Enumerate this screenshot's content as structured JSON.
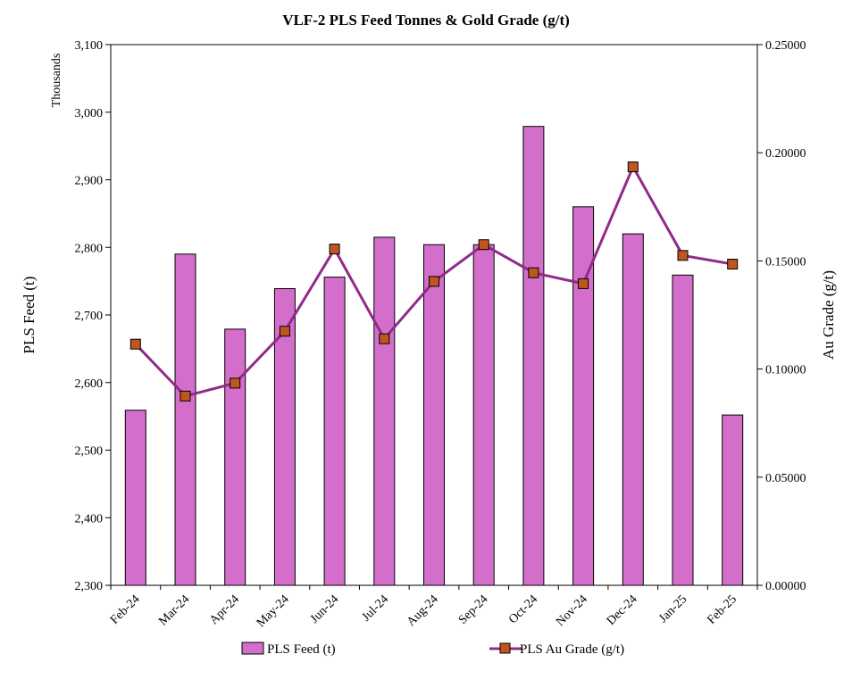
{
  "chart_data": {
    "type": "bar",
    "title": "VLF-2 PLS Feed Tonnes & Gold Grade (g/t)",
    "categories": [
      "Feb-24",
      "Mar-24",
      "Apr-24",
      "May-24",
      "Jun-24",
      "Jul-24",
      "Aug-24",
      "Sep-24",
      "Oct-24",
      "Nov-24",
      "Dec-24",
      "Jan-25",
      "Feb-25"
    ],
    "y_unit_label": "Thousands",
    "ylabel": "PLS Feed (t)",
    "y2label": "Au Grade (g/t)",
    "ylim": [
      2300,
      3100
    ],
    "y_ticks": [
      2300,
      2400,
      2500,
      2600,
      2700,
      2800,
      2900,
      3000,
      3100
    ],
    "y_tick_labels": [
      "2,300",
      "2,400",
      "2,500",
      "2,600",
      "2,700",
      "2,800",
      "2,900",
      "3,000",
      "3,100"
    ],
    "y2lim": [
      0,
      0.25
    ],
    "y2_ticks": [
      0,
      0.05,
      0.1,
      0.15,
      0.2,
      0.25
    ],
    "y2_tick_labels": [
      "0.00000",
      "0.05000",
      "0.10000",
      "0.15000",
      "0.20000",
      "0.25000"
    ],
    "grid": false,
    "legend_position": "bottom",
    "series": [
      {
        "name": "PLS Feed (t)",
        "type": "bar",
        "axis": "left",
        "color": "#d46ecb",
        "values": [
          2559,
          2790,
          2679,
          2739,
          2756,
          2815,
          2804,
          2804,
          2979,
          2860,
          2820,
          2759,
          2552
        ]
      },
      {
        "name": "PLS Au Grade (g/t)",
        "type": "line",
        "axis": "right",
        "color": "#922a8a",
        "marker_color": "#c0561f",
        "values": [
          0.1115,
          0.0875,
          0.0935,
          0.1175,
          0.1555,
          0.114,
          0.1405,
          0.1575,
          0.1445,
          0.1395,
          0.1935,
          0.1525,
          0.1485
        ]
      }
    ]
  }
}
